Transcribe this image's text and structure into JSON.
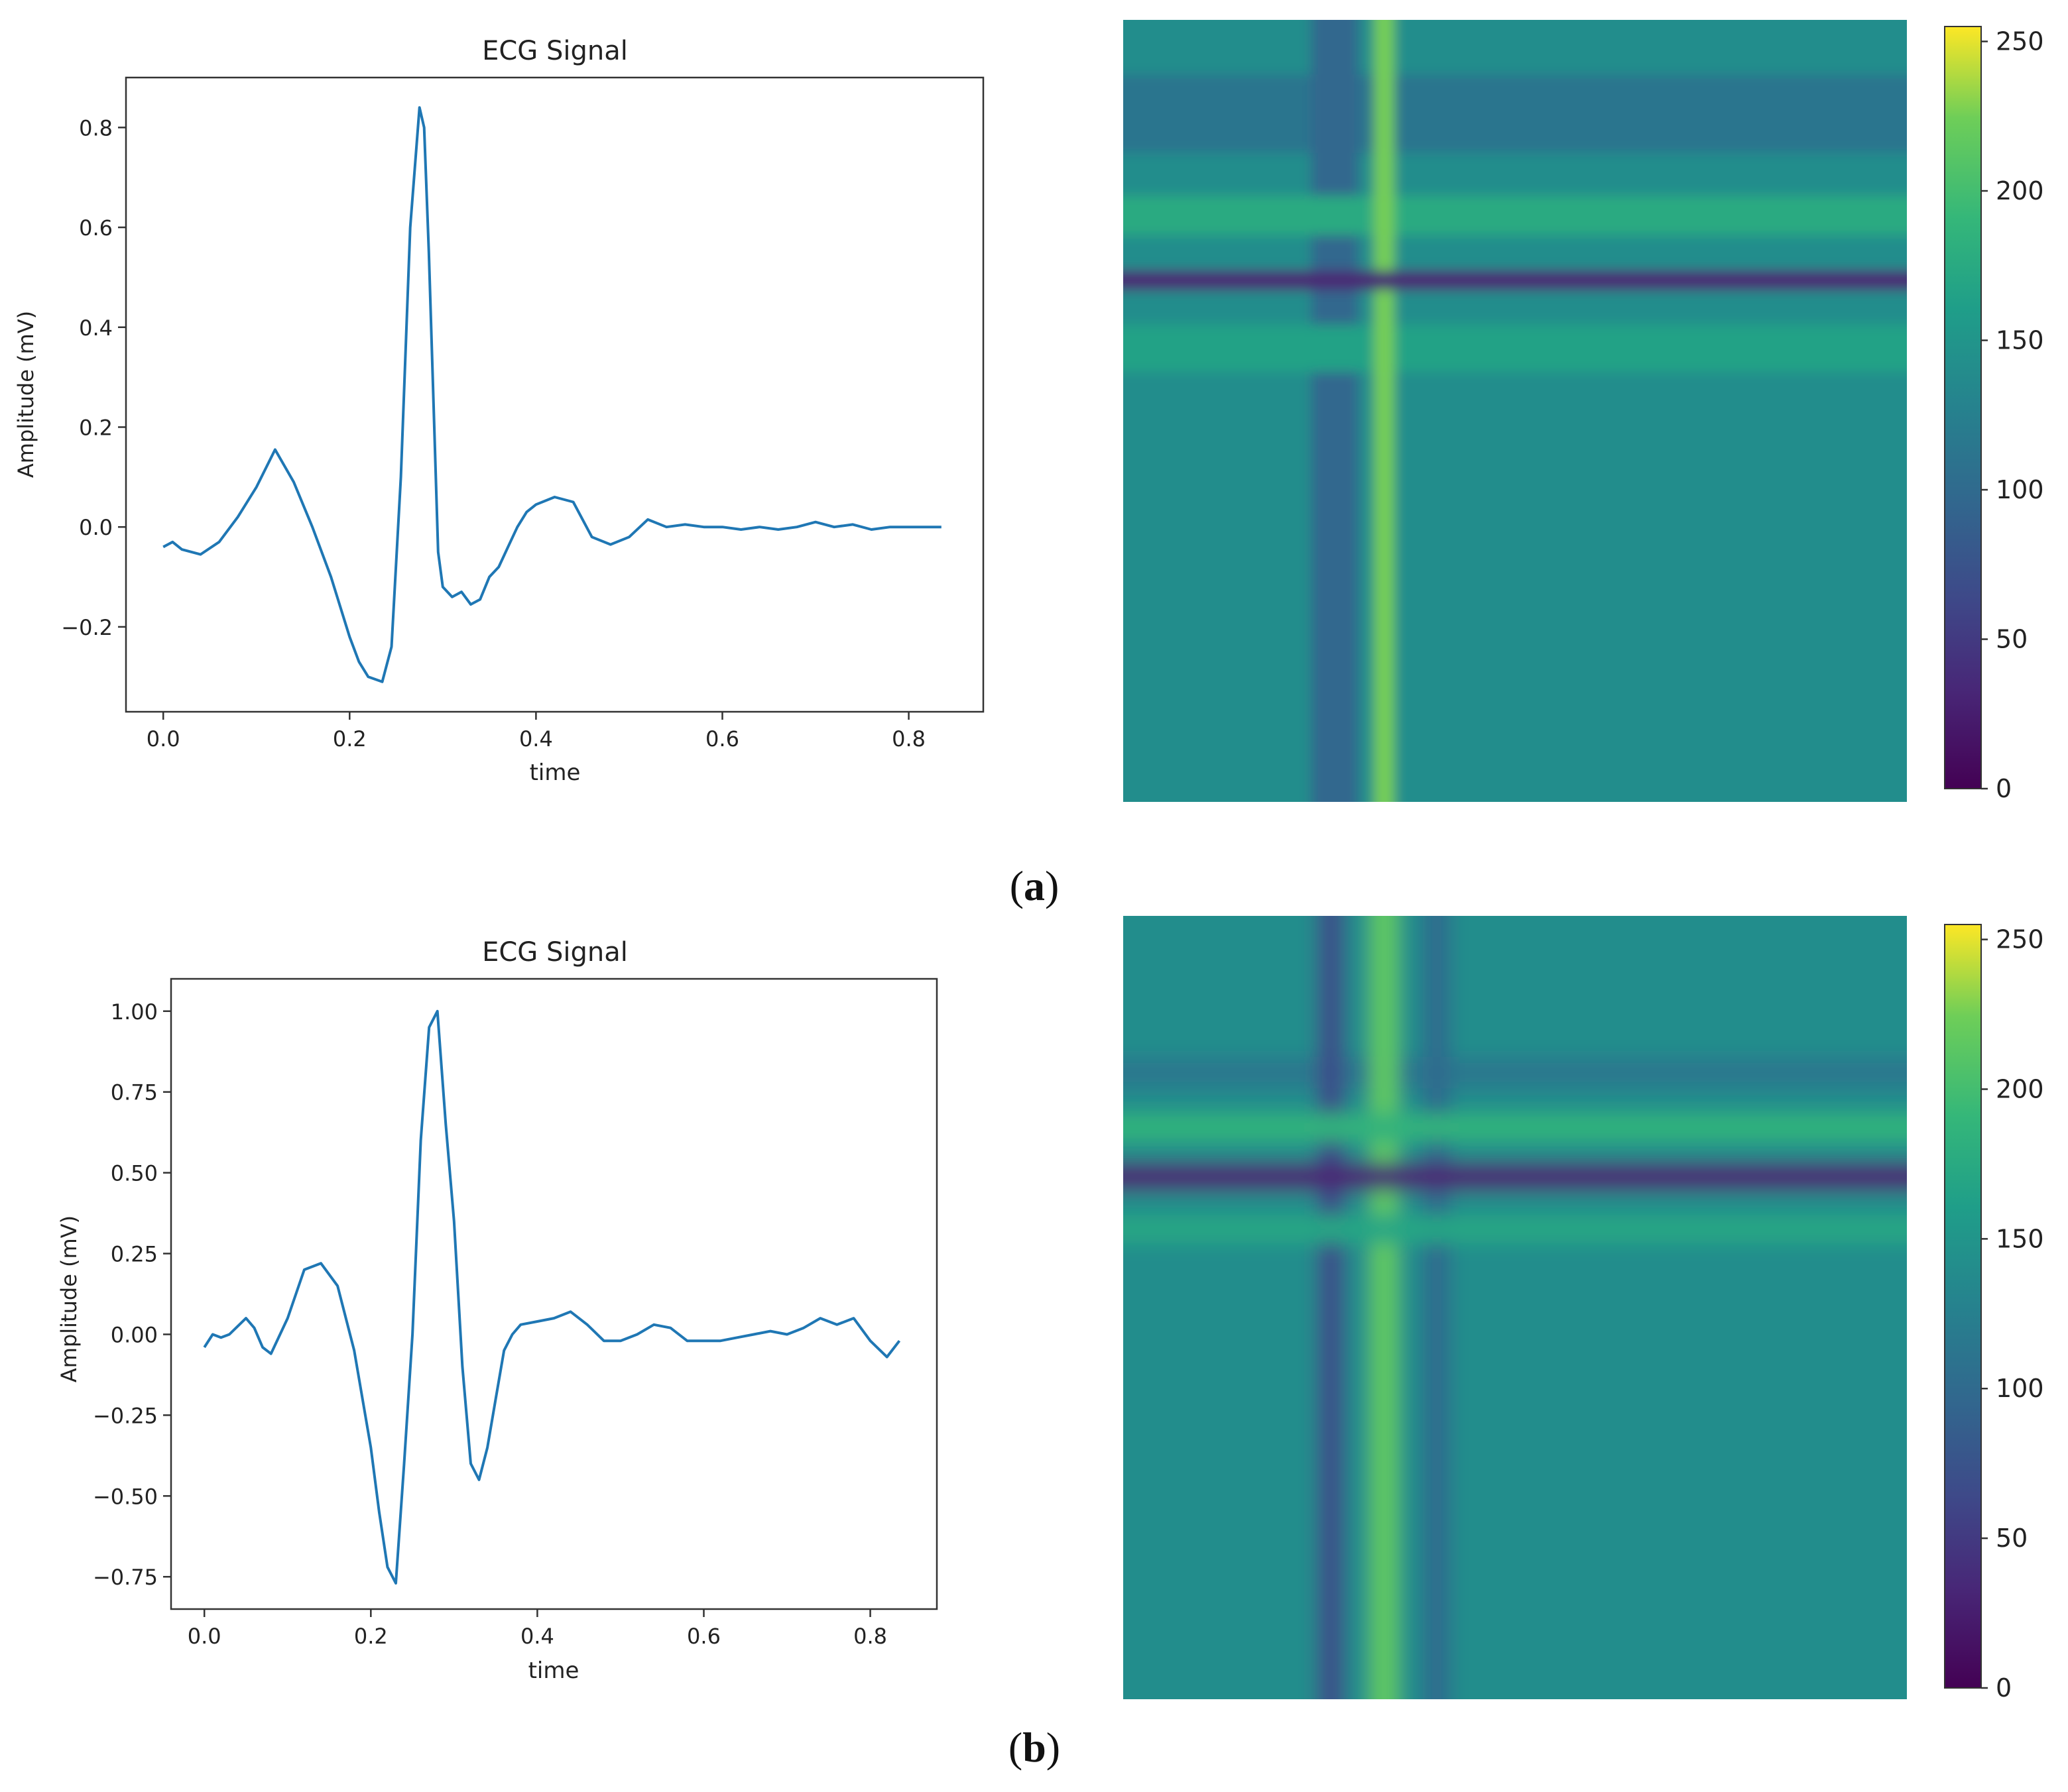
{
  "chart_data": [
    {
      "type": "line",
      "panel": "a",
      "title": "ECG Signal",
      "xlabel": "time",
      "ylabel": "Amplitude (mV)",
      "xlim": [
        -0.04,
        0.88
      ],
      "ylim": [
        -0.37,
        0.9
      ],
      "xticks": [
        0.0,
        0.2,
        0.4,
        0.6,
        0.8
      ],
      "xtick_labels": [
        "0.0",
        "0.2",
        "0.4",
        "0.6",
        "0.8"
      ],
      "yticks": [
        -0.2,
        0.0,
        0.2,
        0.4,
        0.6,
        0.8
      ],
      "ytick_labels": [
        "−0.2",
        "0.0",
        "0.2",
        "0.4",
        "0.6",
        "0.8"
      ],
      "color": "#1f77b4",
      "series": [
        {
          "name": "ECG",
          "x": [
            0.0,
            0.01,
            0.02,
            0.04,
            0.06,
            0.08,
            0.1,
            0.12,
            0.14,
            0.16,
            0.18,
            0.2,
            0.21,
            0.22,
            0.235,
            0.245,
            0.255,
            0.265,
            0.275,
            0.28,
            0.285,
            0.295,
            0.3,
            0.31,
            0.32,
            0.33,
            0.34,
            0.35,
            0.36,
            0.37,
            0.38,
            0.39,
            0.4,
            0.42,
            0.44,
            0.46,
            0.48,
            0.5,
            0.52,
            0.54,
            0.56,
            0.58,
            0.6,
            0.62,
            0.64,
            0.66,
            0.68,
            0.7,
            0.72,
            0.74,
            0.76,
            0.78,
            0.8,
            0.82,
            0.835
          ],
          "y": [
            -0.04,
            -0.03,
            -0.045,
            -0.055,
            -0.03,
            0.02,
            0.08,
            0.155,
            0.09,
            0.0,
            -0.1,
            -0.22,
            -0.27,
            -0.3,
            -0.31,
            -0.24,
            0.1,
            0.6,
            0.84,
            0.8,
            0.55,
            -0.05,
            -0.12,
            -0.14,
            -0.13,
            -0.155,
            -0.145,
            -0.1,
            -0.08,
            -0.04,
            0.0,
            0.03,
            0.045,
            0.06,
            0.05,
            -0.02,
            -0.035,
            -0.02,
            0.015,
            0.0,
            0.005,
            0.0,
            0.0,
            -0.005,
            0.0,
            -0.005,
            0.0,
            0.01,
            0.0,
            0.005,
            -0.005,
            0.0,
            0.0,
            0.0,
            0.0
          ]
        }
      ]
    },
    {
      "type": "heatmap",
      "panel": "a",
      "colormap": "viridis",
      "colorbar_range": [
        0,
        255
      ],
      "colorbar_ticks": [
        0,
        50,
        100,
        150,
        200,
        250
      ],
      "colorbar_tick_labels": [
        "0",
        "50",
        "100",
        "150",
        "200",
        "250"
      ],
      "background_value": 140,
      "bands": [
        {
          "orientation": "vertical",
          "center_fraction": 0.333,
          "width_fraction": 0.025,
          "value": 225
        },
        {
          "orientation": "vertical",
          "center_fraction": 0.27,
          "width_fraction": 0.06,
          "value": 95
        },
        {
          "orientation": "horizontal",
          "center_fraction": 0.333,
          "width_fraction": 0.025,
          "value": 30
        },
        {
          "orientation": "horizontal",
          "center_fraction": 0.25,
          "width_fraction": 0.05,
          "value": 175
        },
        {
          "orientation": "horizontal",
          "center_fraction": 0.42,
          "width_fraction": 0.06,
          "value": 165
        },
        {
          "orientation": "horizontal",
          "center_fraction": 0.12,
          "width_fraction": 0.1,
          "value": 110
        }
      ]
    },
    {
      "type": "line",
      "panel": "b",
      "title": "ECG Signal",
      "xlabel": "time",
      "ylabel": "Amplitude (mV)",
      "xlim": [
        -0.04,
        0.88
      ],
      "ylim": [
        -0.85,
        1.1
      ],
      "xticks": [
        0.0,
        0.2,
        0.4,
        0.6,
        0.8
      ],
      "xtick_labels": [
        "0.0",
        "0.2",
        "0.4",
        "0.6",
        "0.8"
      ],
      "yticks": [
        -0.75,
        -0.5,
        -0.25,
        0.0,
        0.25,
        0.5,
        0.75,
        1.0
      ],
      "ytick_labels": [
        "−0.75",
        "−0.50",
        "−0.25",
        "0.00",
        "0.25",
        "0.50",
        "0.75",
        "1.00"
      ],
      "color": "#1f77b4",
      "series": [
        {
          "name": "ECG",
          "x": [
            0.0,
            0.01,
            0.02,
            0.03,
            0.05,
            0.06,
            0.07,
            0.08,
            0.1,
            0.12,
            0.14,
            0.16,
            0.18,
            0.2,
            0.21,
            0.22,
            0.23,
            0.24,
            0.25,
            0.26,
            0.27,
            0.28,
            0.29,
            0.3,
            0.31,
            0.32,
            0.33,
            0.34,
            0.35,
            0.36,
            0.37,
            0.38,
            0.4,
            0.42,
            0.44,
            0.46,
            0.48,
            0.5,
            0.52,
            0.54,
            0.56,
            0.58,
            0.6,
            0.62,
            0.64,
            0.66,
            0.68,
            0.7,
            0.72,
            0.74,
            0.76,
            0.78,
            0.8,
            0.82,
            0.835
          ],
          "y": [
            -0.04,
            0.0,
            -0.01,
            0.0,
            0.05,
            0.02,
            -0.04,
            -0.06,
            0.05,
            0.2,
            0.22,
            0.15,
            -0.05,
            -0.35,
            -0.55,
            -0.72,
            -0.77,
            -0.4,
            0.0,
            0.6,
            0.95,
            1.0,
            0.65,
            0.35,
            -0.1,
            -0.4,
            -0.45,
            -0.35,
            -0.2,
            -0.05,
            0.0,
            0.03,
            0.04,
            0.05,
            0.07,
            0.03,
            -0.02,
            -0.02,
            0.0,
            0.03,
            0.02,
            -0.02,
            -0.02,
            -0.02,
            -0.01,
            0.0,
            0.01,
            0.0,
            0.02,
            0.05,
            0.03,
            0.05,
            -0.02,
            -0.07,
            -0.02
          ]
        }
      ]
    },
    {
      "type": "heatmap",
      "panel": "b",
      "colormap": "viridis",
      "colorbar_range": [
        0,
        255
      ],
      "colorbar_ticks": [
        0,
        50,
        100,
        150,
        200,
        250
      ],
      "colorbar_tick_labels": [
        "0",
        "50",
        "100",
        "150",
        "200",
        "250"
      ],
      "background_value": 140,
      "bands": [
        {
          "orientation": "vertical",
          "center_fraction": 0.333,
          "width_fraction": 0.035,
          "value": 215
        },
        {
          "orientation": "vertical",
          "center_fraction": 0.265,
          "width_fraction": 0.035,
          "value": 70
        },
        {
          "orientation": "vertical",
          "center_fraction": 0.4,
          "width_fraction": 0.035,
          "value": 100
        },
        {
          "orientation": "horizontal",
          "center_fraction": 0.27,
          "width_fraction": 0.035,
          "value": 185
        },
        {
          "orientation": "horizontal",
          "center_fraction": 0.333,
          "width_fraction": 0.035,
          "value": 30
        },
        {
          "orientation": "horizontal",
          "center_fraction": 0.4,
          "width_fraction": 0.035,
          "value": 170
        },
        {
          "orientation": "horizontal",
          "center_fraction": 0.2,
          "width_fraction": 0.04,
          "value": 115
        }
      ]
    }
  ],
  "panel_labels": {
    "a": {
      "open": "(",
      "letter": "a",
      "close": ")"
    },
    "b": {
      "open": "(",
      "letter": "b",
      "close": ")"
    }
  },
  "colors": {
    "line": "#1f77b4",
    "axis": "#333333",
    "background": "#ffffff"
  }
}
